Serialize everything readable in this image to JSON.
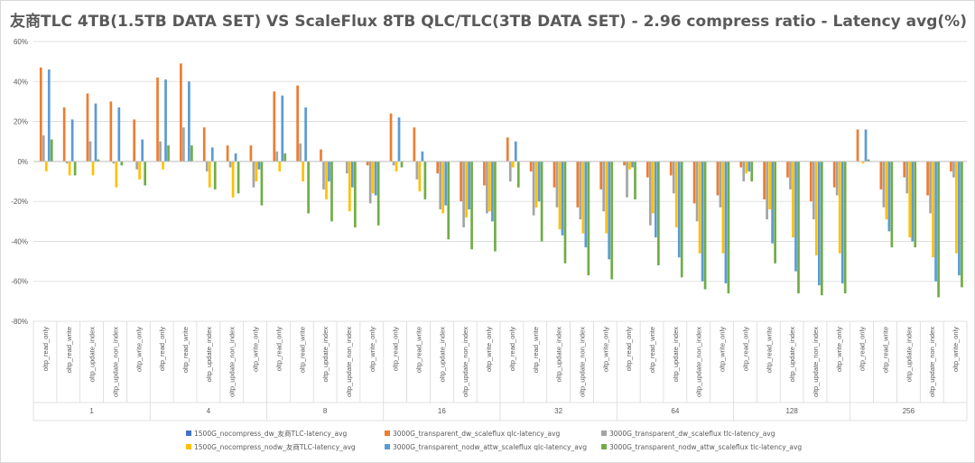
{
  "chart_data": {
    "type": "bar",
    "title": "友商TLC 4TB(1.5TB DATA SET) VS ScaleFlux 8TB QLC/TLC(3TB DATA SET) - 2.96 compress ratio - Latency avg(%)",
    "y_unit": "%",
    "ylim": [
      -80,
      60
    ],
    "y_ticks": [
      "60%",
      "40%",
      "20%",
      "0%",
      "-20%",
      "-40%",
      "-60%",
      "-80%"
    ],
    "grid": true,
    "legend_position": "bottom",
    "groups": [
      "1",
      "4",
      "8",
      "16",
      "32",
      "64",
      "128",
      "256"
    ],
    "subcategories": [
      "oltp_read_only",
      "oltp_read_write",
      "oltp_update_index",
      "oltp_update_non_index",
      "oltp_write_only"
    ],
    "series": [
      {
        "name": "1500G_nocompress_dw_友商TLC-latency_avg",
        "color": "#4472C4",
        "values": [
          0,
          0,
          0,
          0,
          0,
          0,
          0,
          0,
          0,
          0,
          0,
          0,
          0,
          0,
          0,
          0,
          0,
          0,
          0,
          0,
          0,
          0,
          0,
          0,
          0,
          0,
          0,
          0,
          0,
          0,
          0,
          0,
          0,
          0,
          0,
          0,
          0,
          0,
          0,
          0
        ]
      },
      {
        "name": "3000G_transparent_dw_scaleflux qlc-latency_avg",
        "color": "#ED7D31",
        "values": [
          47,
          27,
          34,
          30,
          21,
          42,
          49,
          17,
          8,
          8,
          35,
          38,
          6,
          0,
          -2,
          24,
          17,
          -6,
          -20,
          -12,
          12,
          -5,
          -13,
          -23,
          -14,
          -2,
          -8,
          -7,
          -21,
          -17,
          -3,
          -19,
          -8,
          -20,
          -13,
          16,
          -14,
          -8,
          -17,
          -5
        ]
      },
      {
        "name": "3000G_transparent_dw_scaleflux tlc-latency_avg",
        "color": "#A5A5A5",
        "values": [
          13,
          -1,
          10,
          -1,
          -4,
          10,
          17,
          -5,
          -3,
          -13,
          5,
          9,
          -14,
          -6,
          -21,
          -2,
          -9,
          -24,
          -33,
          -26,
          -10,
          -27,
          -23,
          -29,
          -25,
          -18,
          -32,
          -16,
          -30,
          -23,
          -10,
          -29,
          -14,
          -29,
          -17,
          0,
          -23,
          -16,
          -26,
          -8
        ]
      },
      {
        "name": "1500G_nocompress_nodw_友商TLC-latency_avg",
        "color": "#FFC000",
        "values": [
          -5,
          -7,
          -7,
          -13,
          -9,
          -4,
          0,
          -13,
          -18,
          -10,
          -5,
          -10,
          -19,
          -25,
          -16,
          -5,
          -15,
          -26,
          -28,
          -25,
          -3,
          -23,
          -34,
          -36,
          -36,
          -4,
          -26,
          -33,
          -46,
          -46,
          -6,
          -24,
          -38,
          -47,
          -46,
          -1,
          -29,
          -38,
          -48,
          -46
        ]
      },
      {
        "name": "3000G_transparent_nodw_attw_scaleflux qlc-latency_avg",
        "color": "#5B9BD5",
        "values": [
          46,
          21,
          29,
          27,
          11,
          41,
          40,
          7,
          4,
          -4,
          33,
          27,
          -10,
          -13,
          -17,
          22,
          5,
          -22,
          -24,
          -30,
          10,
          -20,
          -37,
          -43,
          -49,
          -3,
          -38,
          -48,
          -60,
          -61,
          -5,
          -41,
          -55,
          -62,
          -61,
          16,
          -35,
          -40,
          -60,
          -57
        ]
      },
      {
        "name": "3000G_transparent_nodw_attw_scaleflux tlc-latency_avg",
        "color": "#70AD47",
        "values": [
          11,
          -7,
          1,
          -2,
          -12,
          8,
          8,
          -14,
          -16,
          -22,
          4,
          -26,
          -30,
          -33,
          -32,
          -3,
          -19,
          -39,
          -44,
          -45,
          -13,
          -40,
          -51,
          -57,
          -59,
          -19,
          -52,
          -58,
          -64,
          -66,
          -10,
          -51,
          -66,
          -67,
          -66,
          1,
          -43,
          -43,
          -68,
          -63
        ]
      }
    ]
  }
}
